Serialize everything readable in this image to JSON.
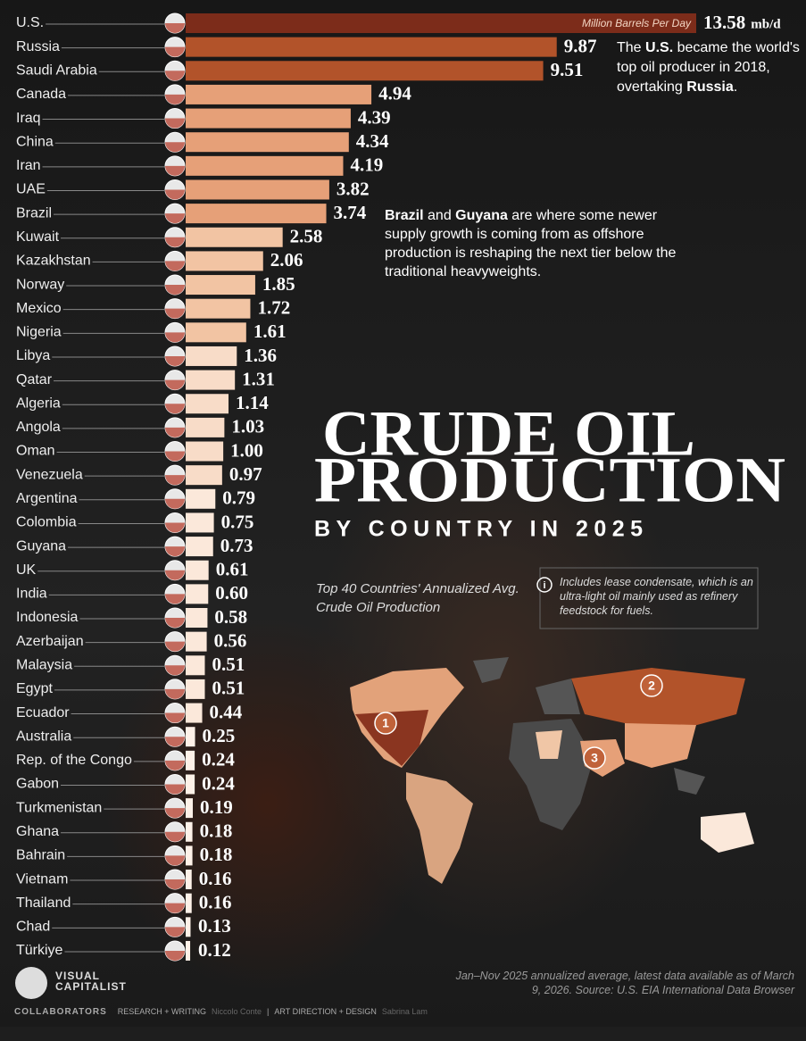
{
  "chart_data": {
    "type": "bar",
    "orientation": "horizontal",
    "title": [
      "CRUDE OIL",
      "PRODUCTION"
    ],
    "subtitle": "BY COUNTRY IN 2025",
    "description": "Top 40 Countries' Annualized Avg. Crude Oil Production",
    "bar_label": "Million Barrels Per Day",
    "unit": "mb/d",
    "categories": [
      "U.S.",
      "Russia",
      "Saudi Arabia",
      "Canada",
      "Iraq",
      "China",
      "Iran",
      "UAE",
      "Brazil",
      "Kuwait",
      "Kazakhstan",
      "Norway",
      "Mexico",
      "Nigeria",
      "Libya",
      "Qatar",
      "Algeria",
      "Angola",
      "Oman",
      "Venezuela",
      "Argentina",
      "Colombia",
      "Guyana",
      "UK",
      "India",
      "Indonesia",
      "Azerbaijan",
      "Malaysia",
      "Egypt",
      "Ecuador",
      "Australia",
      "Rep. of the Congo",
      "Gabon",
      "Turkmenistan",
      "Ghana",
      "Bahrain",
      "Vietnam",
      "Thailand",
      "Chad",
      "Türkiye"
    ],
    "values": [
      13.58,
      9.87,
      9.51,
      4.94,
      4.39,
      4.34,
      4.19,
      3.82,
      3.74,
      2.58,
      2.06,
      1.85,
      1.72,
      1.61,
      1.36,
      1.31,
      1.14,
      1.03,
      1.0,
      0.97,
      0.79,
      0.75,
      0.73,
      0.61,
      0.6,
      0.58,
      0.56,
      0.51,
      0.51,
      0.44,
      0.25,
      0.24,
      0.24,
      0.19,
      0.18,
      0.18,
      0.16,
      0.16,
      0.13,
      0.12
    ],
    "value_labels": [
      "13.58",
      "9.87",
      "9.51",
      "4.94",
      "4.39",
      "4.34",
      "4.19",
      "3.82",
      "3.74",
      "2.58",
      "2.06",
      "1.85",
      "1.72",
      "1.61",
      "1.36",
      "1.31",
      "1.14",
      "1.03",
      "1.00",
      "0.97",
      "0.79",
      "0.75",
      "0.73",
      "0.61",
      "0.60",
      "0.58",
      "0.56",
      "0.51",
      "0.51",
      "0.44",
      "0.25",
      "0.24",
      "0.24",
      "0.19",
      "0.18",
      "0.18",
      "0.16",
      "0.16",
      "0.13",
      "0.12"
    ],
    "colors": [
      "#7c2c1a",
      "#b2532a",
      "#b2532a",
      "#e6a078",
      "#e6a078",
      "#e6a078",
      "#e6a078",
      "#e6a078",
      "#e6a078",
      "#f2c4a3",
      "#f2c4a3",
      "#f2c4a3",
      "#f2c4a3",
      "#f2c4a3",
      "#f8dcc8",
      "#f8dcc8",
      "#f8dcc8",
      "#f8dcc8",
      "#f8dcc8",
      "#f8dcc8",
      "#fbe8da",
      "#fbe8da",
      "#fbe8da",
      "#fbe8da",
      "#fbe8da",
      "#fbe8da",
      "#fbe8da",
      "#fbe8da",
      "#fbe8da",
      "#fbe8da",
      "#fdf1e8",
      "#fdf1e8",
      "#fdf1e8",
      "#fdf1e8",
      "#fdf1e8",
      "#fdf1e8",
      "#fdf1e8",
      "#fdf1e8",
      "#fdf1e8",
      "#fdf1e8"
    ],
    "annotations": [
      [
        {
          "text": "The "
        },
        {
          "text": "U.S.",
          "bold": true
        },
        {
          "text": " became the world's top oil producer in 2018, overtaking "
        },
        {
          "text": "Russia",
          "bold": true
        },
        {
          "text": "."
        }
      ],
      [
        {
          "text": "Brazil",
          "bold": true
        },
        {
          "text": " and "
        },
        {
          "text": "Guyana",
          "bold": true
        },
        {
          "text": " are where some newer supply growth is coming from as offshore production is reshaping the next tier below the traditional heavyweights."
        }
      ]
    ],
    "note_icon": "i",
    "note": "Includes lease condensate, which is an ultra-light oil mainly used as refinery feedstock for fuels.",
    "map_markers": [
      "1",
      "2",
      "3"
    ],
    "source": "Jan–Nov 2025 annualized average, latest data available as of March 9, 2026. Source: U.S. EIA International Data Browser",
    "brand": [
      "VISUAL",
      "CAPITALIST"
    ],
    "credits": [
      "COLLABORATORS",
      "RESEARCH + WRITING",
      "Niccolo Conte",
      "|",
      "ART DIRECTION + DESIGN",
      "Sabrina Lam"
    ]
  }
}
